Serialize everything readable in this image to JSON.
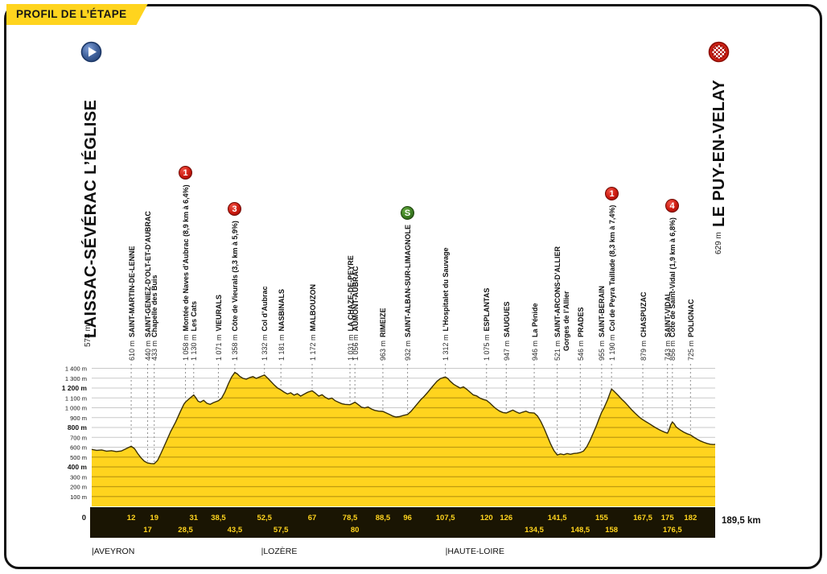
{
  "banner": {
    "title": "PROFIL DE L’ÉTAPE"
  },
  "start": {
    "name": "LAISSAC-SÉVÉRAC L’ÉGLISE",
    "elevation": "578 m",
    "icon": "play-circle"
  },
  "finish": {
    "name": "LE PUY-EN-VELAY",
    "elevation": "629 m",
    "icon": "checkered-flag-circle"
  },
  "regions": [
    {
      "label": "|AVEYRON",
      "km": 0
    },
    {
      "label": "|LOZÈRE",
      "km": 51.5
    },
    {
      "label": "|HAUTE-LOIRE",
      "km": 107.5
    }
  ],
  "colors": {
    "profile_yellow": "#FFD41E",
    "profile_stripe": "#BF9B10",
    "profile_outline": "#3A3006",
    "grid": "#C9C9C9",
    "bar_background": "#1A1503",
    "bar_text": "#FFD41E",
    "leader": "#8F8F8F",
    "badge_climb": "#C8170C",
    "badge_sprint": "#3C7D22",
    "text": "#111111"
  },
  "chart_data": {
    "type": "area",
    "title": "PROFIL DE L’ÉTAPE",
    "x_unit": "km",
    "y_unit": "m",
    "xlim": [
      0,
      189.5
    ],
    "ylim": [
      0,
      1400
    ],
    "grid": true,
    "total_label": "189,5 km",
    "zero_label": "0",
    "axis_labels": [
      {
        "m": 1400,
        "text": "1 400 m",
        "bold": false
      },
      {
        "m": 1300,
        "text": "1 300 m",
        "bold": false
      },
      {
        "m": 1200,
        "text": "1 200 m",
        "bold": true
      },
      {
        "m": 1100,
        "text": "1 100 m",
        "bold": false
      },
      {
        "m": 1000,
        "text": "1 000 m",
        "bold": false
      },
      {
        "m": 900,
        "text": "900 m",
        "bold": false
      },
      {
        "m": 800,
        "text": "800 m",
        "bold": true
      },
      {
        "m": 700,
        "text": "700 m",
        "bold": false
      },
      {
        "m": 600,
        "text": "600 m",
        "bold": false
      },
      {
        "m": 500,
        "text": "500 m",
        "bold": false
      },
      {
        "m": 400,
        "text": "400 m",
        "bold": true
      },
      {
        "m": 300,
        "text": "300 m",
        "bold": false
      },
      {
        "m": 200,
        "text": "200 m",
        "bold": false
      },
      {
        "m": 100,
        "text": "100 m",
        "bold": false
      }
    ],
    "waypoints": [
      {
        "km": 12,
        "km_label": "12",
        "row": "top",
        "elevation_m": 610,
        "elevation_label": "610 m",
        "name": "SAINT-MARTIN-DE-LENNE"
      },
      {
        "km": 17,
        "km_label": "17",
        "row": "bottom",
        "elevation_m": 440,
        "elevation_label": "440 m",
        "name": "SAINT-GENIEZ-D’OLT-ET-D’AUBRAC"
      },
      {
        "km": 19,
        "km_label": "19",
        "row": "top",
        "elevation_m": 433,
        "elevation_label": "433 m",
        "name": "Chapelle des Buis"
      },
      {
        "km": 28.5,
        "km_label": "28,5",
        "row": "bottom",
        "elevation_m": 1058,
        "elevation_label": "1 058 m",
        "name": "Montée de Naves d’Aubrac (8,9 km à 6,4%)",
        "badge": {
          "type": "climb",
          "text": "1"
        }
      },
      {
        "km": 31,
        "km_label": "31",
        "row": "top",
        "elevation_m": 1130,
        "elevation_label": "1 130 m",
        "name": "Les Cats"
      },
      {
        "km": 38.5,
        "km_label": "38,5",
        "row": "top",
        "elevation_m": 1071,
        "elevation_label": "1 071 m",
        "name": "VIEURALS"
      },
      {
        "km": 43.5,
        "km_label": "43,5",
        "row": "bottom",
        "elevation_m": 1358,
        "elevation_label": "1 358 m",
        "name": "Côte de Vieurals (3,3 km à 5,9%)",
        "badge": {
          "type": "climb",
          "text": "3"
        }
      },
      {
        "km": 52.5,
        "km_label": "52,5",
        "row": "top",
        "elevation_m": 1332,
        "elevation_label": "1 332 m",
        "name": "Col d’Aubrac"
      },
      {
        "km": 57.5,
        "km_label": "57,5",
        "row": "bottom",
        "elevation_m": 1181,
        "elevation_label": "1 181 m",
        "name": "NASBINALS"
      },
      {
        "km": 67,
        "km_label": "67",
        "row": "top",
        "elevation_m": 1172,
        "elevation_label": "1 172 m",
        "name": "MALBOUZON"
      },
      {
        "km": 78.5,
        "km_label": "78,5",
        "row": "top",
        "elevation_m": 1031,
        "elevation_label": "1 031 m",
        "name": "LA CHAZE-DE-PEYRE"
      },
      {
        "km": 80,
        "km_label": "80",
        "row": "bottom",
        "elevation_m": 1056,
        "elevation_label": "1 056 m",
        "name": "AUMONT-AUBRAC"
      },
      {
        "km": 88.5,
        "km_label": "88,5",
        "row": "top",
        "elevation_m": 963,
        "elevation_label": "963 m",
        "name": "RIMEIZE"
      },
      {
        "km": 96,
        "km_label": "96",
        "row": "top",
        "elevation_m": 932,
        "elevation_label": "932 m",
        "name": "SAINT-ALBAN-SUR-LIMAGNOLE",
        "badge": {
          "type": "sprint",
          "text": "S"
        }
      },
      {
        "km": 107.5,
        "km_label": "107,5",
        "row": "top",
        "elevation_m": 1312,
        "elevation_label": "1 312 m",
        "name": "L’Hospitalet du Sauvage"
      },
      {
        "km": 120,
        "km_label": "120",
        "row": "top",
        "elevation_m": 1075,
        "elevation_label": "1 075 m",
        "name": "ESPLANTAS"
      },
      {
        "km": 126,
        "km_label": "126",
        "row": "top",
        "elevation_m": 947,
        "elevation_label": "947 m",
        "name": "SAUGUES"
      },
      {
        "km": 134.5,
        "km_label": "134,5",
        "row": "bottom",
        "elevation_m": 946,
        "elevation_label": "946 m",
        "name": "La Pénide"
      },
      {
        "km": 141.5,
        "km_label": "141,5",
        "row": "top",
        "elevation_m": 521,
        "elevation_label": "521 m",
        "name": "SAINT-ARCONS-D’ALLIER",
        "name2": "Gorges de l’Allier"
      },
      {
        "km": 148.5,
        "km_label": "148,5",
        "row": "bottom",
        "elevation_m": 546,
        "elevation_label": "546 m",
        "name": "PRADES"
      },
      {
        "km": 155,
        "km_label": "155",
        "row": "top",
        "elevation_m": 955,
        "elevation_label": "955 m",
        "name": "SAINT-BERAIN"
      },
      {
        "km": 158,
        "km_label": "158",
        "row": "bottom",
        "elevation_m": 1190,
        "elevation_label": "1 190 m",
        "name": "Col de Peyra Taillade (8,3 km à 7,4%)",
        "badge": {
          "type": "climb",
          "text": "1"
        }
      },
      {
        "km": 167.5,
        "km_label": "167,5",
        "row": "top",
        "elevation_m": 879,
        "elevation_label": "879 m",
        "name": "CHASPUZAC"
      },
      {
        "km": 175,
        "km_label": "175",
        "row": "top",
        "elevation_m": 743,
        "elevation_label": "743 m",
        "name": "SAINT-VIDAL"
      },
      {
        "km": 176.5,
        "km_label": "176,5",
        "row": "bottom",
        "elevation_m": 856,
        "elevation_label": "856 m",
        "name": "Côte de Saint-Vidal (1,9 km à 6,8%)",
        "badge": {
          "type": "climb",
          "text": "4"
        }
      },
      {
        "km": 182,
        "km_label": "182",
        "row": "top",
        "elevation_m": 725,
        "elevation_label": "725 m",
        "name": "POLIGNAC"
      }
    ],
    "profile_points": [
      [
        0,
        578
      ],
      [
        1.5,
        568
      ],
      [
        3,
        572
      ],
      [
        4.5,
        560
      ],
      [
        6,
        565
      ],
      [
        7.5,
        556
      ],
      [
        9,
        562
      ],
      [
        10.5,
        585
      ],
      [
        12,
        610
      ],
      [
        13,
        585
      ],
      [
        14,
        535
      ],
      [
        15,
        492
      ],
      [
        16,
        458
      ],
      [
        17,
        440
      ],
      [
        18,
        434
      ],
      [
        19,
        433
      ],
      [
        20,
        465
      ],
      [
        21,
        535
      ],
      [
        22.5,
        645
      ],
      [
        24,
        760
      ],
      [
        25.5,
        855
      ],
      [
        27,
        965
      ],
      [
        28,
        1035
      ],
      [
        28.5,
        1058
      ],
      [
        29.2,
        1078
      ],
      [
        30,
        1102
      ],
      [
        31,
        1130
      ],
      [
        31.6,
        1105
      ],
      [
        32.3,
        1068
      ],
      [
        33,
        1056
      ],
      [
        34,
        1076
      ],
      [
        35,
        1046
      ],
      [
        36,
        1034
      ],
      [
        37,
        1052
      ],
      [
        38.5,
        1071
      ],
      [
        39.5,
        1098
      ],
      [
        40.5,
        1160
      ],
      [
        41.5,
        1240
      ],
      [
        42.5,
        1310
      ],
      [
        43.5,
        1358
      ],
      [
        44.3,
        1342
      ],
      [
        45,
        1318
      ],
      [
        46,
        1298
      ],
      [
        47,
        1290
      ],
      [
        48,
        1306
      ],
      [
        49,
        1316
      ],
      [
        50,
        1298
      ],
      [
        51,
        1312
      ],
      [
        52,
        1326
      ],
      [
        52.5,
        1332
      ],
      [
        53.5,
        1300
      ],
      [
        54.5,
        1265
      ],
      [
        55.5,
        1230
      ],
      [
        56.5,
        1200
      ],
      [
        57.5,
        1181
      ],
      [
        58.5,
        1158
      ],
      [
        59.5,
        1140
      ],
      [
        60.5,
        1152
      ],
      [
        61.5,
        1128
      ],
      [
        62.5,
        1142
      ],
      [
        63.5,
        1118
      ],
      [
        64.5,
        1136
      ],
      [
        65.7,
        1158
      ],
      [
        67,
        1172
      ],
      [
        68,
        1148
      ],
      [
        69,
        1118
      ],
      [
        70,
        1132
      ],
      [
        71,
        1106
      ],
      [
        72,
        1088
      ],
      [
        73,
        1098
      ],
      [
        74,
        1072
      ],
      [
        75,
        1056
      ],
      [
        76,
        1042
      ],
      [
        77,
        1034
      ],
      [
        78.5,
        1031
      ],
      [
        79.2,
        1042
      ],
      [
        80,
        1056
      ],
      [
        81,
        1032
      ],
      [
        82,
        1006
      ],
      [
        83,
        998
      ],
      [
        84,
        1008
      ],
      [
        85,
        988
      ],
      [
        86,
        974
      ],
      [
        87.2,
        966
      ],
      [
        88.5,
        963
      ],
      [
        89.5,
        948
      ],
      [
        90.5,
        932
      ],
      [
        91.5,
        916
      ],
      [
        92.5,
        906
      ],
      [
        93.5,
        910
      ],
      [
        94.7,
        922
      ],
      [
        96,
        932
      ],
      [
        97,
        962
      ],
      [
        98,
        1002
      ],
      [
        99,
        1042
      ],
      [
        100,
        1082
      ],
      [
        101,
        1114
      ],
      [
        102,
        1152
      ],
      [
        103,
        1192
      ],
      [
        104,
        1232
      ],
      [
        105,
        1270
      ],
      [
        106,
        1296
      ],
      [
        107,
        1308
      ],
      [
        107.5,
        1312
      ],
      [
        108.2,
        1298
      ],
      [
        109,
        1268
      ],
      [
        110,
        1238
      ],
      [
        111,
        1218
      ],
      [
        112,
        1200
      ],
      [
        113,
        1212
      ],
      [
        114,
        1188
      ],
      [
        115,
        1158
      ],
      [
        116,
        1130
      ],
      [
        117,
        1120
      ],
      [
        118,
        1098
      ],
      [
        119,
        1084
      ],
      [
        120,
        1075
      ],
      [
        121,
        1048
      ],
      [
        122,
        1016
      ],
      [
        123,
        988
      ],
      [
        124,
        966
      ],
      [
        125,
        952
      ],
      [
        126,
        947
      ],
      [
        127,
        962
      ],
      [
        128,
        976
      ],
      [
        129,
        958
      ],
      [
        130,
        944
      ],
      [
        131,
        956
      ],
      [
        132,
        966
      ],
      [
        133,
        950
      ],
      [
        134.5,
        946
      ],
      [
        135.5,
        916
      ],
      [
        136.5,
        862
      ],
      [
        137.5,
        792
      ],
      [
        138.5,
        712
      ],
      [
        139.5,
        632
      ],
      [
        140.5,
        565
      ],
      [
        141.5,
        521
      ],
      [
        142.5,
        532
      ],
      [
        143.5,
        524
      ],
      [
        144.5,
        536
      ],
      [
        145.5,
        528
      ],
      [
        146.5,
        536
      ],
      [
        147.5,
        540
      ],
      [
        148.5,
        546
      ],
      [
        149.5,
        562
      ],
      [
        150.5,
        606
      ],
      [
        151.5,
        672
      ],
      [
        152.5,
        748
      ],
      [
        153.5,
        826
      ],
      [
        154.3,
        896
      ],
      [
        155,
        955
      ],
      [
        155.6,
        992
      ],
      [
        156.2,
        1036
      ],
      [
        156.8,
        1082
      ],
      [
        157.4,
        1136
      ],
      [
        158,
        1190
      ],
      [
        158.6,
        1172
      ],
      [
        159.4,
        1146
      ],
      [
        160.2,
        1118
      ],
      [
        161,
        1090
      ],
      [
        162,
        1058
      ],
      [
        163,
        1022
      ],
      [
        164,
        984
      ],
      [
        165,
        950
      ],
      [
        166,
        918
      ],
      [
        167,
        890
      ],
      [
        167.5,
        879
      ],
      [
        168.5,
        858
      ],
      [
        169.5,
        838
      ],
      [
        170.5,
        816
      ],
      [
        171.5,
        796
      ],
      [
        172.5,
        778
      ],
      [
        173.5,
        762
      ],
      [
        174.3,
        750
      ],
      [
        175,
        743
      ],
      [
        175.5,
        778
      ],
      [
        176,
        828
      ],
      [
        176.5,
        856
      ],
      [
        177,
        838
      ],
      [
        177.6,
        808
      ],
      [
        178.3,
        788
      ],
      [
        179,
        772
      ],
      [
        180,
        752
      ],
      [
        181,
        736
      ],
      [
        182,
        725
      ],
      [
        183,
        702
      ],
      [
        184,
        682
      ],
      [
        185,
        664
      ],
      [
        186,
        650
      ],
      [
        187,
        638
      ],
      [
        188,
        630
      ],
      [
        189,
        627
      ],
      [
        189.5,
        629
      ]
    ]
  }
}
